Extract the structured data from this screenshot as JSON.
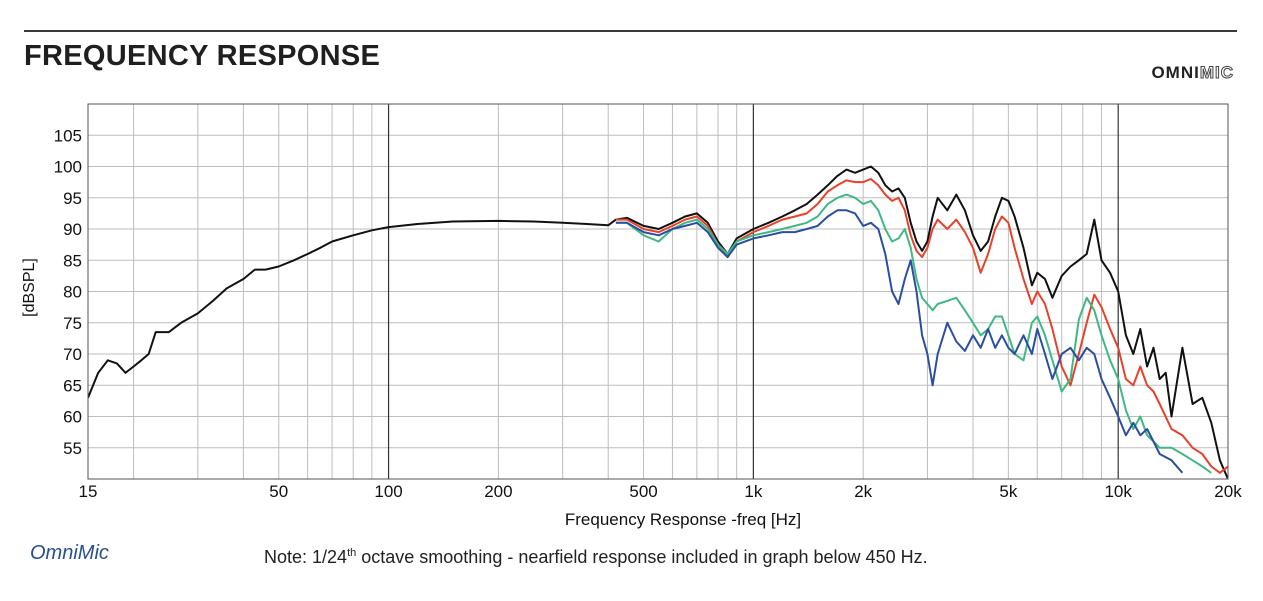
{
  "header": {
    "title": "FREQUENCY RESPONSE",
    "brand_bold": "OMNI",
    "brand_outline": "MIC"
  },
  "footer": {
    "left_label": "OmniMic",
    "note_prefix": "Note: 1/24",
    "note_sup": "th",
    "note_suffix": " octave smoothing - nearfield response included in graph below 450 Hz."
  },
  "chart_data": {
    "type": "line",
    "title": "FREQUENCY RESPONSE",
    "xlabel": "Frequency Response -freq [Hz]",
    "ylabel": "[dBSPL]",
    "xscale": "log",
    "xlim": [
      15,
      20000
    ],
    "ylim": [
      50,
      110
    ],
    "grid": true,
    "legend": "none",
    "x_ticks": [
      {
        "value": 15,
        "label": "15"
      },
      {
        "value": 50,
        "label": "50"
      },
      {
        "value": 100,
        "label": "100"
      },
      {
        "value": 200,
        "label": "200"
      },
      {
        "value": 500,
        "label": "500"
      },
      {
        "value": 1000,
        "label": "1k"
      },
      {
        "value": 2000,
        "label": "2k"
      },
      {
        "value": 5000,
        "label": "5k"
      },
      {
        "value": 10000,
        "label": "10k"
      },
      {
        "value": 20000,
        "label": "20k"
      }
    ],
    "y_ticks": [
      55,
      60,
      65,
      70,
      75,
      80,
      85,
      90,
      95,
      100,
      105
    ],
    "series": [
      {
        "color": "#111111",
        "points": [
          [
            15,
            63
          ],
          [
            16,
            67
          ],
          [
            17,
            69
          ],
          [
            18,
            68.5
          ],
          [
            19,
            67
          ],
          [
            20,
            68
          ],
          [
            21,
            69
          ],
          [
            22,
            70
          ],
          [
            23,
            73.5
          ],
          [
            25,
            73.5
          ],
          [
            27,
            75
          ],
          [
            30,
            76.5
          ],
          [
            33,
            78.5
          ],
          [
            36,
            80.5
          ],
          [
            40,
            82
          ],
          [
            43,
            83.5
          ],
          [
            46,
            83.5
          ],
          [
            50,
            84
          ],
          [
            55,
            85
          ],
          [
            60,
            86
          ],
          [
            65,
            87
          ],
          [
            70,
            88
          ],
          [
            80,
            89
          ],
          [
            90,
            89.8
          ],
          [
            100,
            90.3
          ],
          [
            120,
            90.8
          ],
          [
            150,
            91.2
          ],
          [
            200,
            91.3
          ],
          [
            250,
            91.2
          ],
          [
            300,
            91
          ],
          [
            350,
            90.8
          ],
          [
            400,
            90.6
          ],
          [
            420,
            91.5
          ],
          [
            450,
            91.8
          ],
          [
            500,
            90.5
          ],
          [
            550,
            90
          ],
          [
            600,
            91
          ],
          [
            650,
            92
          ],
          [
            700,
            92.5
          ],
          [
            750,
            91
          ],
          [
            800,
            88
          ],
          [
            850,
            86
          ],
          [
            900,
            88.5
          ],
          [
            1000,
            90
          ],
          [
            1100,
            91
          ],
          [
            1200,
            92
          ],
          [
            1300,
            93
          ],
          [
            1400,
            94
          ],
          [
            1500,
            95.5
          ],
          [
            1600,
            97
          ],
          [
            1700,
            98.5
          ],
          [
            1800,
            99.5
          ],
          [
            1900,
            99
          ],
          [
            2000,
            99.5
          ],
          [
            2100,
            100
          ],
          [
            2200,
            99
          ],
          [
            2300,
            97
          ],
          [
            2400,
            96
          ],
          [
            2500,
            96.5
          ],
          [
            2600,
            95
          ],
          [
            2700,
            91
          ],
          [
            2800,
            88
          ],
          [
            2900,
            86.5
          ],
          [
            3000,
            88
          ],
          [
            3100,
            92
          ],
          [
            3200,
            95
          ],
          [
            3400,
            93
          ],
          [
            3600,
            95.5
          ],
          [
            3800,
            93
          ],
          [
            4000,
            89
          ],
          [
            4200,
            86.5
          ],
          [
            4400,
            88
          ],
          [
            4600,
            92
          ],
          [
            4800,
            95
          ],
          [
            5000,
            94.5
          ],
          [
            5200,
            92
          ],
          [
            5500,
            87
          ],
          [
            5800,
            81
          ],
          [
            6000,
            83
          ],
          [
            6300,
            82
          ],
          [
            6600,
            79
          ],
          [
            7000,
            82.5
          ],
          [
            7400,
            84
          ],
          [
            7800,
            85
          ],
          [
            8200,
            86
          ],
          [
            8600,
            91.5
          ],
          [
            9000,
            85
          ],
          [
            9500,
            83
          ],
          [
            10000,
            80
          ],
          [
            10500,
            73
          ],
          [
            11000,
            70
          ],
          [
            11500,
            74
          ],
          [
            12000,
            68
          ],
          [
            12500,
            71
          ],
          [
            13000,
            66
          ],
          [
            13500,
            67
          ],
          [
            14000,
            60
          ],
          [
            15000,
            71
          ],
          [
            16000,
            62
          ],
          [
            17000,
            63
          ],
          [
            18000,
            59
          ],
          [
            19000,
            53
          ],
          [
            20000,
            50
          ]
        ]
      },
      {
        "color": "#e8412a",
        "points": [
          [
            420,
            91.5
          ],
          [
            450,
            91.5
          ],
          [
            500,
            90
          ],
          [
            550,
            89.5
          ],
          [
            600,
            90.5
          ],
          [
            650,
            91.5
          ],
          [
            700,
            92
          ],
          [
            750,
            90.5
          ],
          [
            800,
            87.5
          ],
          [
            850,
            85.5
          ],
          [
            900,
            88
          ],
          [
            1000,
            89.5
          ],
          [
            1100,
            90.5
          ],
          [
            1200,
            91.5
          ],
          [
            1300,
            92
          ],
          [
            1400,
            92.5
          ],
          [
            1500,
            94
          ],
          [
            1600,
            96
          ],
          [
            1700,
            97
          ],
          [
            1800,
            97.8
          ],
          [
            1900,
            97.5
          ],
          [
            2000,
            97.5
          ],
          [
            2100,
            98
          ],
          [
            2200,
            97
          ],
          [
            2300,
            95.5
          ],
          [
            2400,
            94.5
          ],
          [
            2500,
            95
          ],
          [
            2600,
            93
          ],
          [
            2700,
            89
          ],
          [
            2800,
            86.5
          ],
          [
            2900,
            85.5
          ],
          [
            3000,
            87
          ],
          [
            3100,
            90
          ],
          [
            3200,
            91.5
          ],
          [
            3400,
            90
          ],
          [
            3600,
            91.5
          ],
          [
            3800,
            89.5
          ],
          [
            4000,
            87
          ],
          [
            4200,
            83
          ],
          [
            4400,
            86
          ],
          [
            4600,
            90
          ],
          [
            4800,
            92
          ],
          [
            5000,
            91
          ],
          [
            5200,
            87
          ],
          [
            5500,
            82
          ],
          [
            5800,
            78
          ],
          [
            6000,
            80
          ],
          [
            6300,
            78
          ],
          [
            6600,
            74
          ],
          [
            7000,
            68
          ],
          [
            7400,
            65
          ],
          [
            7800,
            70
          ],
          [
            8200,
            75
          ],
          [
            8600,
            79.5
          ],
          [
            9000,
            77.5
          ],
          [
            9500,
            74
          ],
          [
            10000,
            71
          ],
          [
            10500,
            66
          ],
          [
            11000,
            65
          ],
          [
            11500,
            68
          ],
          [
            12000,
            65
          ],
          [
            12500,
            64
          ],
          [
            13000,
            62
          ],
          [
            14000,
            58
          ],
          [
            15000,
            57
          ],
          [
            16000,
            55
          ],
          [
            17000,
            54
          ],
          [
            18000,
            52
          ],
          [
            19000,
            51
          ],
          [
            20000,
            52
          ]
        ]
      },
      {
        "color": "#3fb884",
        "points": [
          [
            420,
            91
          ],
          [
            450,
            91
          ],
          [
            500,
            89
          ],
          [
            550,
            88
          ],
          [
            600,
            90
          ],
          [
            650,
            91
          ],
          [
            700,
            91.5
          ],
          [
            750,
            90
          ],
          [
            800,
            87.5
          ],
          [
            850,
            86
          ],
          [
            900,
            88
          ],
          [
            1000,
            89
          ],
          [
            1100,
            89.5
          ],
          [
            1200,
            90
          ],
          [
            1300,
            90.5
          ],
          [
            1400,
            91
          ],
          [
            1500,
            92
          ],
          [
            1600,
            94
          ],
          [
            1700,
            95
          ],
          [
            1800,
            95.5
          ],
          [
            1900,
            95
          ],
          [
            2000,
            94
          ],
          [
            2100,
            94.5
          ],
          [
            2200,
            93
          ],
          [
            2300,
            90
          ],
          [
            2400,
            88
          ],
          [
            2500,
            88.5
          ],
          [
            2600,
            90
          ],
          [
            2700,
            87
          ],
          [
            2800,
            82
          ],
          [
            2900,
            79
          ],
          [
            3000,
            78
          ],
          [
            3100,
            77
          ],
          [
            3200,
            78
          ],
          [
            3400,
            78.5
          ],
          [
            3600,
            79
          ],
          [
            3800,
            77
          ],
          [
            4000,
            75
          ],
          [
            4200,
            73
          ],
          [
            4400,
            74
          ],
          [
            4600,
            76
          ],
          [
            4800,
            76
          ],
          [
            5000,
            73
          ],
          [
            5200,
            70
          ],
          [
            5500,
            69
          ],
          [
            5800,
            75
          ],
          [
            6000,
            76
          ],
          [
            6300,
            73
          ],
          [
            6600,
            69
          ],
          [
            7000,
            64
          ],
          [
            7400,
            66
          ],
          [
            7800,
            75.5
          ],
          [
            8200,
            79
          ],
          [
            8600,
            77
          ],
          [
            9000,
            73
          ],
          [
            9500,
            69
          ],
          [
            10000,
            66
          ],
          [
            10500,
            61
          ],
          [
            11000,
            58
          ],
          [
            11500,
            60
          ],
          [
            12000,
            57
          ],
          [
            12500,
            56
          ],
          [
            13000,
            55
          ],
          [
            14000,
            55
          ],
          [
            15000,
            54
          ],
          [
            16000,
            53
          ],
          [
            17000,
            52
          ],
          [
            18000,
            51
          ]
        ]
      },
      {
        "color": "#2a4fa0",
        "points": [
          [
            420,
            91
          ],
          [
            450,
            91
          ],
          [
            500,
            89.5
          ],
          [
            550,
            89
          ],
          [
            600,
            90
          ],
          [
            650,
            90.5
          ],
          [
            700,
            91
          ],
          [
            750,
            89.5
          ],
          [
            800,
            87
          ],
          [
            850,
            85.5
          ],
          [
            900,
            87.5
          ],
          [
            1000,
            88.5
          ],
          [
            1100,
            89
          ],
          [
            1200,
            89.5
          ],
          [
            1300,
            89.5
          ],
          [
            1400,
            90
          ],
          [
            1500,
            90.5
          ],
          [
            1600,
            92
          ],
          [
            1700,
            93
          ],
          [
            1800,
            93
          ],
          [
            1900,
            92.5
          ],
          [
            2000,
            90.5
          ],
          [
            2100,
            91
          ],
          [
            2200,
            90
          ],
          [
            2300,
            86
          ],
          [
            2400,
            80
          ],
          [
            2500,
            78
          ],
          [
            2600,
            82
          ],
          [
            2700,
            85
          ],
          [
            2800,
            80
          ],
          [
            2900,
            73
          ],
          [
            3000,
            70
          ],
          [
            3100,
            65
          ],
          [
            3200,
            70
          ],
          [
            3400,
            75
          ],
          [
            3600,
            72
          ],
          [
            3800,
            70.5
          ],
          [
            4000,
            73
          ],
          [
            4200,
            71
          ],
          [
            4400,
            74
          ],
          [
            4600,
            71
          ],
          [
            4800,
            73
          ],
          [
            5000,
            71
          ],
          [
            5200,
            70
          ],
          [
            5500,
            73
          ],
          [
            5800,
            70
          ],
          [
            6000,
            74
          ],
          [
            6300,
            70
          ],
          [
            6600,
            66
          ],
          [
            7000,
            70
          ],
          [
            7400,
            71
          ],
          [
            7800,
            69
          ],
          [
            8200,
            71
          ],
          [
            8600,
            70
          ],
          [
            9000,
            66
          ],
          [
            9500,
            63
          ],
          [
            10000,
            60
          ],
          [
            10500,
            57
          ],
          [
            11000,
            59
          ],
          [
            11500,
            57
          ],
          [
            12000,
            58
          ],
          [
            12500,
            56
          ],
          [
            13000,
            54
          ],
          [
            14000,
            53
          ],
          [
            15000,
            51
          ]
        ]
      }
    ]
  }
}
